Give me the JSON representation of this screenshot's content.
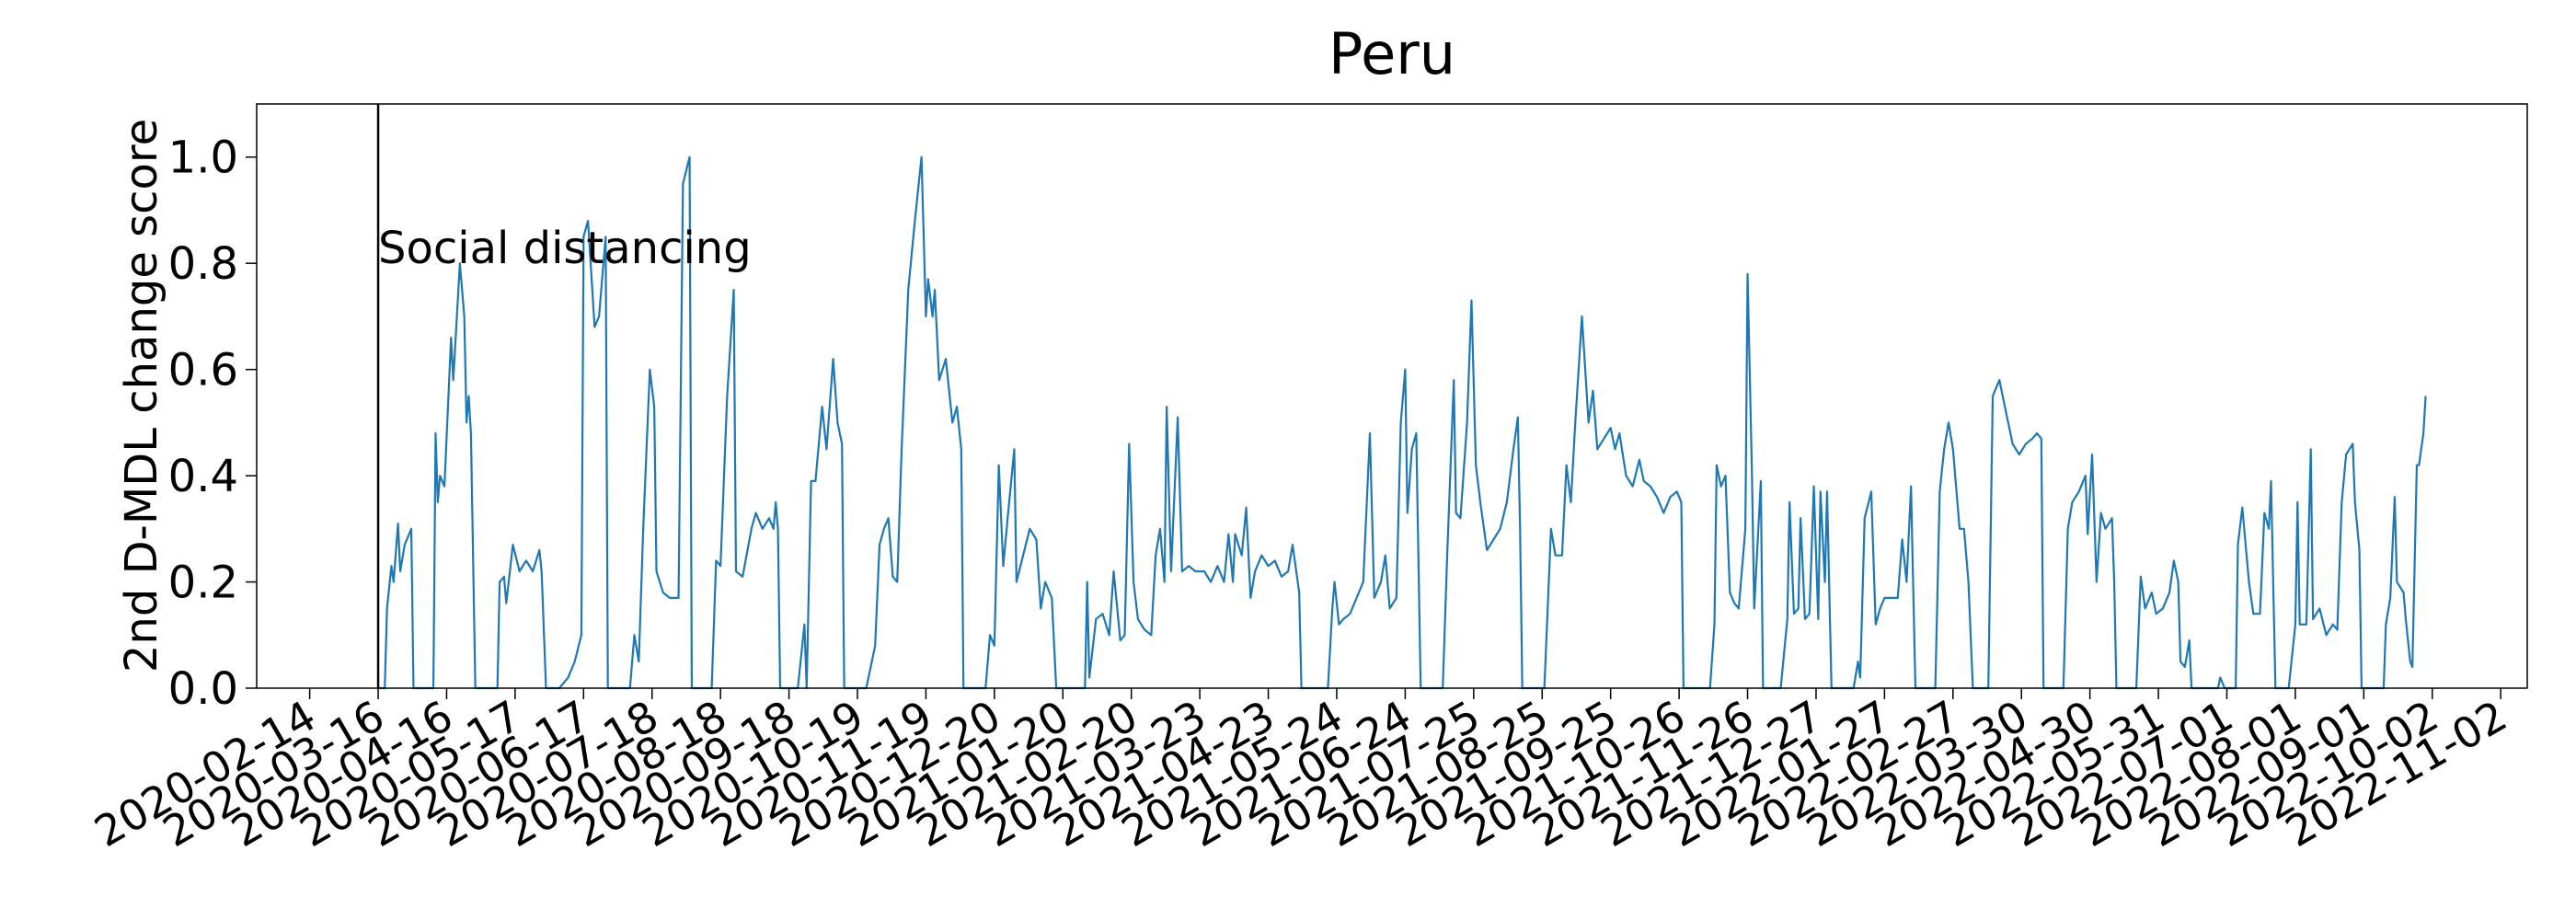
{
  "chart_data": {
    "type": "line",
    "title": "Peru",
    "ylabel": "2nd D-MDL change score",
    "xlim": [
      "2020-01-21",
      "2022-11-14"
    ],
    "ylim": [
      0,
      1.1
    ],
    "yticks": [
      {
        "value": 0,
        "label": "0.0"
      },
      0.2,
      0.4,
      0.6,
      0.8,
      {
        "value": 1,
        "label": "1.0"
      }
    ],
    "xticks": [
      "2020-02-14",
      "2020-03-16",
      "2020-04-16",
      "2020-05-17",
      "2020-06-17",
      "2020-07-18",
      "2020-08-18",
      "2020-09-18",
      "2020-10-19",
      "2020-11-19",
      "2020-12-20",
      "2021-01-20",
      "2021-02-20",
      "2021-03-23",
      "2021-04-23",
      "2021-05-24",
      "2021-06-24",
      "2021-07-25",
      "2021-08-25",
      "2021-09-25",
      "2021-10-26",
      "2021-11-26",
      "2021-12-27",
      "2022-01-27",
      "2022-02-27",
      "2022-03-30",
      "2022-04-30",
      "2022-05-31",
      "2022-07-01",
      "2022-08-01",
      "2022-09-01",
      "2022-10-02",
      "2022-11-02"
    ],
    "annotation": {
      "x": "2020-03-16",
      "y": 0.8,
      "text": "Social distancing"
    },
    "x": [
      "2020-03-16",
      "2020-03-19",
      "2020-03-20",
      "2020-03-22",
      "2020-03-23",
      "2020-03-25",
      "2020-03-26",
      "2020-03-28",
      "2020-03-31",
      "2020-04-01",
      "2020-04-10",
      "2020-04-11",
      "2020-04-12",
      "2020-04-13",
      "2020-04-15",
      "2020-04-18",
      "2020-04-19",
      "2020-04-22",
      "2020-04-24",
      "2020-04-25",
      "2020-04-26",
      "2020-04-27",
      "2020-04-29",
      "2020-05-09",
      "2020-05-10",
      "2020-05-12",
      "2020-05-13",
      "2020-05-16",
      "2020-05-19",
      "2020-05-22",
      "2020-05-25",
      "2020-05-28",
      "2020-05-29",
      "2020-05-31",
      "2020-06-06",
      "2020-06-10",
      "2020-06-13",
      "2020-06-16",
      "2020-06-17",
      "2020-06-19",
      "2020-06-22",
      "2020-06-24",
      "2020-06-27",
      "2020-06-28",
      "2020-07-08",
      "2020-07-10",
      "2020-07-12",
      "2020-07-14",
      "2020-07-17",
      "2020-07-19",
      "2020-07-20",
      "2020-07-23",
      "2020-07-26",
      "2020-07-30",
      "2020-08-01",
      "2020-08-04",
      "2020-08-05",
      "2020-08-14",
      "2020-08-16",
      "2020-08-18",
      "2020-08-21",
      "2020-08-24",
      "2020-08-25",
      "2020-08-28",
      "2020-09-01",
      "2020-09-03",
      "2020-09-06",
      "2020-09-09",
      "2020-09-11",
      "2020-09-12",
      "2020-09-13",
      "2020-09-14",
      "2020-09-22",
      "2020-09-25",
      "2020-09-26",
      "2020-09-28",
      "2020-09-30",
      "2020-10-03",
      "2020-10-05",
      "2020-10-08",
      "2020-10-10",
      "2020-10-12",
      "2020-10-13",
      "2020-10-23",
      "2020-10-27",
      "2020-10-29",
      "2020-10-31",
      "2020-11-02",
      "2020-11-04",
      "2020-11-06",
      "2020-11-08",
      "2020-11-11",
      "2020-11-14",
      "2020-11-17",
      "2020-11-19",
      "2020-11-20",
      "2020-11-22",
      "2020-11-23",
      "2020-11-25",
      "2020-11-28",
      "2020-12-01",
      "2020-12-03",
      "2020-12-05",
      "2020-12-06",
      "2020-12-16",
      "2020-12-18",
      "2020-12-20",
      "2020-12-22",
      "2020-12-24",
      "2020-12-26",
      "2020-12-29",
      "2020-12-30",
      "2021-01-02",
      "2021-01-05",
      "2021-01-08",
      "2021-01-10",
      "2021-01-12",
      "2021-01-15",
      "2021-01-17",
      "2021-01-30",
      "2021-01-31",
      "2021-02-01",
      "2021-02-04",
      "2021-02-07",
      "2021-02-10",
      "2021-02-12",
      "2021-02-15",
      "2021-02-17",
      "2021-02-19",
      "2021-02-21",
      "2021-02-23",
      "2021-02-26",
      "2021-03-01",
      "2021-03-03",
      "2021-03-05",
      "2021-03-07",
      "2021-03-08",
      "2021-03-10",
      "2021-03-13",
      "2021-03-15",
      "2021-03-18",
      "2021-03-21",
      "2021-03-25",
      "2021-03-28",
      "2021-03-31",
      "2021-04-03",
      "2021-04-05",
      "2021-04-07",
      "2021-04-08",
      "2021-04-11",
      "2021-04-13",
      "2021-04-15",
      "2021-04-17",
      "2021-04-20",
      "2021-04-23",
      "2021-04-26",
      "2021-04-29",
      "2021-05-02",
      "2021-05-04",
      "2021-05-07",
      "2021-05-08",
      "2021-05-20",
      "2021-05-22",
      "2021-05-23",
      "2021-05-25",
      "2021-05-27",
      "2021-05-30",
      "2021-06-02",
      "2021-06-05",
      "2021-06-08",
      "2021-06-10",
      "2021-06-13",
      "2021-06-15",
      "2021-06-17",
      "2021-06-20",
      "2021-06-22",
      "2021-06-24",
      "2021-06-25",
      "2021-06-27",
      "2021-06-29",
      "2021-07-01",
      "2021-07-11",
      "2021-07-13",
      "2021-07-16",
      "2021-07-17",
      "2021-07-19",
      "2021-07-22",
      "2021-07-24",
      "2021-07-26",
      "2021-07-28",
      "2021-07-31",
      "2021-08-03",
      "2021-08-06",
      "2021-08-09",
      "2021-08-12",
      "2021-08-14",
      "2021-08-15",
      "2021-08-16",
      "2021-08-26",
      "2021-08-28",
      "2021-08-29",
      "2021-08-31",
      "2021-09-03",
      "2021-09-05",
      "2021-09-07",
      "2021-09-09",
      "2021-09-12",
      "2021-09-15",
      "2021-09-17",
      "2021-09-19",
      "2021-09-22",
      "2021-09-25",
      "2021-09-27",
      "2021-09-29",
      "2021-10-02",
      "2021-10-05",
      "2021-10-08",
      "2021-10-10",
      "2021-10-13",
      "2021-10-16",
      "2021-10-19",
      "2021-10-22",
      "2021-10-25",
      "2021-10-27",
      "2021-10-28",
      "2021-11-09",
      "2021-11-11",
      "2021-11-12",
      "2021-11-14",
      "2021-11-16",
      "2021-11-18",
      "2021-11-20",
      "2021-11-22",
      "2021-11-25",
      "2021-11-26",
      "2021-11-28",
      "2021-11-29",
      "2021-12-02",
      "2021-12-03",
      "2021-12-11",
      "2021-12-14",
      "2021-12-15",
      "2021-12-17",
      "2021-12-19",
      "2021-12-20",
      "2021-12-22",
      "2021-12-24",
      "2021-12-26",
      "2021-12-28",
      "2021-12-29",
      "2021-12-31",
      "2022-01-01",
      "2022-01-03",
      "2022-01-13",
      "2022-01-15",
      "2022-01-16",
      "2022-01-18",
      "2022-01-21",
      "2022-01-23",
      "2022-01-25",
      "2022-01-27",
      "2022-01-30",
      "2022-02-02",
      "2022-02-04",
      "2022-02-06",
      "2022-02-08",
      "2022-02-10",
      "2022-02-19",
      "2022-02-21",
      "2022-02-23",
      "2022-02-25",
      "2022-02-27",
      "2022-03-02",
      "2022-03-04",
      "2022-03-06",
      "2022-03-08",
      "2022-03-15",
      "2022-03-17",
      "2022-03-20",
      "2022-03-23",
      "2022-03-26",
      "2022-03-29",
      "2022-04-01",
      "2022-04-04",
      "2022-04-06",
      "2022-04-08",
      "2022-04-09",
      "2022-04-18",
      "2022-04-20",
      "2022-04-22",
      "2022-04-25",
      "2022-04-28",
      "2022-04-29",
      "2022-05-01",
      "2022-05-03",
      "2022-05-05",
      "2022-05-07",
      "2022-05-10",
      "2022-05-11",
      "2022-05-12",
      "2022-05-21",
      "2022-05-23",
      "2022-05-25",
      "2022-05-28",
      "2022-05-30",
      "2022-06-02",
      "2022-06-05",
      "2022-06-07",
      "2022-06-09",
      "2022-06-10",
      "2022-06-12",
      "2022-06-14",
      "2022-06-15",
      "2022-06-27",
      "2022-06-28",
      "2022-06-30",
      "2022-07-05",
      "2022-07-06",
      "2022-07-08",
      "2022-07-11",
      "2022-07-13",
      "2022-07-16",
      "2022-07-18",
      "2022-07-20",
      "2022-07-21",
      "2022-07-23",
      "2022-07-29",
      "2022-08-01",
      "2022-08-02",
      "2022-08-03",
      "2022-08-06",
      "2022-08-08",
      "2022-08-09",
      "2022-08-12",
      "2022-08-15",
      "2022-08-18",
      "2022-08-20",
      "2022-08-22",
      "2022-08-24",
      "2022-08-27",
      "2022-08-28",
      "2022-08-30",
      "2022-08-31",
      "2022-09-10",
      "2022-09-11",
      "2022-09-13",
      "2022-09-15",
      "2022-09-16",
      "2022-09-19",
      "2022-09-20",
      "2022-09-22",
      "2022-09-23",
      "2022-09-25",
      "2022-09-26",
      "2022-09-28",
      "2022-09-29"
    ],
    "series": [
      {
        "name": "Peru",
        "color": "#1f77b4",
        "values": [
          0,
          0,
          0.15,
          0.23,
          0.2,
          0.31,
          0.22,
          0.27,
          0.3,
          0,
          0,
          0.48,
          0.35,
          0.4,
          0.38,
          0.66,
          0.58,
          0.8,
          0.7,
          0.5,
          0.55,
          0.48,
          0,
          0,
          0.2,
          0.21,
          0.16,
          0.27,
          0.22,
          0.24,
          0.22,
          0.26,
          0.22,
          0,
          0,
          0.02,
          0.05,
          0.1,
          0.85,
          0.88,
          0.68,
          0.7,
          0.85,
          0,
          0,
          0.1,
          0.05,
          0.3,
          0.6,
          0.53,
          0.22,
          0.18,
          0.17,
          0.17,
          0.95,
          1.0,
          0,
          0,
          0.24,
          0.23,
          0.55,
          0.75,
          0.22,
          0.21,
          0.3,
          0.33,
          0.3,
          0.32,
          0.3,
          0.35,
          0.3,
          0,
          0,
          0.12,
          0,
          0.39,
          0.39,
          0.53,
          0.45,
          0.62,
          0.5,
          0.46,
          0,
          0,
          0.08,
          0.27,
          0.3,
          0.32,
          0.21,
          0.2,
          0.45,
          0.75,
          0.88,
          1.0,
          0.7,
          0.77,
          0.7,
          0.75,
          0.58,
          0.62,
          0.5,
          0.53,
          0.45,
          0,
          0,
          0.1,
          0.08,
          0.42,
          0.23,
          0.32,
          0.45,
          0.2,
          0.25,
          0.3,
          0.28,
          0.15,
          0.2,
          0.17,
          0,
          0,
          0.2,
          0.02,
          0.13,
          0.14,
          0.1,
          0.22,
          0.09,
          0.1,
          0.46,
          0.2,
          0.13,
          0.11,
          0.1,
          0.25,
          0.3,
          0.2,
          0.53,
          0.22,
          0.51,
          0.22,
          0.23,
          0.22,
          0.22,
          0.2,
          0.23,
          0.2,
          0.29,
          0.2,
          0.29,
          0.25,
          0.34,
          0.17,
          0.22,
          0.25,
          0.23,
          0.24,
          0.21,
          0.22,
          0.27,
          0.18,
          0,
          0,
          0.15,
          0.2,
          0.12,
          0.13,
          0.14,
          0.17,
          0.2,
          0.48,
          0.17,
          0.2,
          0.25,
          0.15,
          0.17,
          0.5,
          0.6,
          0.33,
          0.45,
          0.48,
          0,
          0,
          0.25,
          0.58,
          0.33,
          0.32,
          0.5,
          0.73,
          0.42,
          0.35,
          0.26,
          0.28,
          0.3,
          0.35,
          0.45,
          0.51,
          0.3,
          0,
          0,
          0.2,
          0.3,
          0.25,
          0.25,
          0.42,
          0.35,
          0.5,
          0.7,
          0.5,
          0.56,
          0.45,
          0.47,
          0.49,
          0.45,
          0.48,
          0.4,
          0.38,
          0.43,
          0.39,
          0.38,
          0.36,
          0.33,
          0.36,
          0.37,
          0.35,
          0,
          0,
          0.12,
          0.42,
          0.38,
          0.4,
          0.18,
          0.16,
          0.15,
          0.3,
          0.78,
          0.4,
          0.15,
          0.39,
          0,
          0,
          0.13,
          0.35,
          0.14,
          0.15,
          0.32,
          0.13,
          0.14,
          0.38,
          0.13,
          0.37,
          0.2,
          0.37,
          0,
          0,
          0.05,
          0.02,
          0.32,
          0.37,
          0.12,
          0.15,
          0.17,
          0.17,
          0.17,
          0.28,
          0.2,
          0.38,
          0,
          0,
          0.37,
          0.45,
          0.5,
          0.45,
          0.3,
          0.3,
          0.2,
          0,
          0,
          0.55,
          0.58,
          0.52,
          0.46,
          0.44,
          0.46,
          0.47,
          0.48,
          0.47,
          0,
          0,
          0.3,
          0.35,
          0.37,
          0.4,
          0.29,
          0.44,
          0.2,
          0.33,
          0.3,
          0.32,
          0.2,
          0,
          0,
          0.21,
          0.15,
          0.18,
          0.14,
          0.15,
          0.18,
          0.24,
          0.2,
          0.05,
          0.04,
          0.09,
          0,
          0,
          0.02,
          0,
          0,
          0.27,
          0.34,
          0.2,
          0.14,
          0.14,
          0.33,
          0.3,
          0.39,
          0,
          0,
          0.12,
          0.35,
          0.12,
          0.12,
          0.45,
          0.13,
          0.15,
          0.1,
          0.12,
          0.11,
          0.35,
          0.44,
          0.46,
          0.35,
          0.26,
          0,
          0,
          0.12,
          0.17,
          0.36,
          0.2,
          0.18,
          0.13,
          0.05,
          0.04,
          0.42,
          0.42,
          0.48,
          0.55
        ]
      }
    ]
  }
}
